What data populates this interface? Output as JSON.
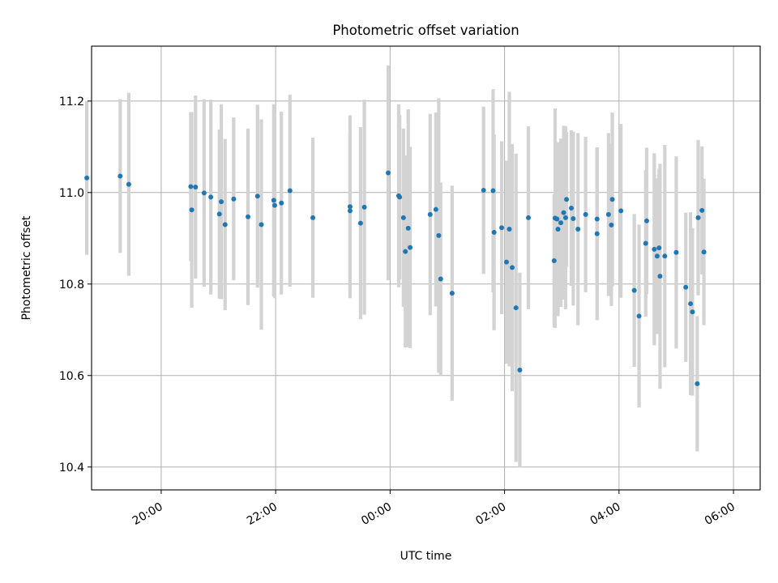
{
  "chart_data": {
    "type": "scatter",
    "title": "Photometric offset variation",
    "xlabel": "UTC time",
    "ylabel": "Photometric offset",
    "xlim": [
      "18:47",
      "06:28"
    ],
    "ylim": [
      10.35,
      11.32
    ],
    "x_ticks": [
      "20:00",
      "22:00",
      "00:00",
      "02:00",
      "04:00",
      "06:00"
    ],
    "y_ticks": [
      "10.4",
      "10.6",
      "10.8",
      "11.0",
      "11.2"
    ],
    "grid": true,
    "colors": {
      "points": "#1f77b4",
      "errorbars": "#d3d3d3",
      "grid": "#b0b0b0",
      "axes": "#000000"
    },
    "series": [
      {
        "x": [
          "18:42",
          "19:17",
          "19:26",
          "20:31",
          "20:32",
          "20:36",
          "20:45",
          "20:52",
          "21:01",
          "21:03",
          "21:07",
          "21:16",
          "21:31",
          "21:41",
          "21:45",
          "21:58",
          "21:59",
          "22:06",
          "22:15",
          "22:39",
          "23:18",
          "23:18",
          "23:29",
          "23:33",
          "23:58",
          "00:09",
          "00:10",
          "00:14",
          "00:16",
          "00:19",
          "00:21",
          "00:42",
          "00:48",
          "00:51",
          "00:53",
          "01:05",
          "01:38",
          "01:48",
          "01:49",
          "01:57",
          "02:02",
          "02:05",
          "02:08",
          "02:12",
          "02:16",
          "02:25",
          "02:52",
          "02:53",
          "02:55",
          "02:56",
          "02:59",
          "03:02",
          "03:04",
          "03:05",
          "03:10",
          "03:12",
          "03:17",
          "03:25",
          "03:37",
          "03:37",
          "03:49",
          "03:52",
          "03:53",
          "04:02",
          "04:16",
          "04:21",
          "04:28",
          "04:29",
          "04:37",
          "04:40",
          "04:42",
          "04:43",
          "04:48",
          "05:00",
          "05:10",
          "05:15",
          "05:17",
          "05:22",
          "05:23",
          "05:27",
          "05:29"
        ],
        "y": [
          11.032,
          11.036,
          11.018,
          11.013,
          10.962,
          11.012,
          10.999,
          10.99,
          10.953,
          10.98,
          10.93,
          10.986,
          10.947,
          10.992,
          10.93,
          10.983,
          10.972,
          10.977,
          11.004,
          10.945,
          10.96,
          10.969,
          10.933,
          10.968,
          11.043,
          10.993,
          10.99,
          10.945,
          10.871,
          10.922,
          10.88,
          10.952,
          10.963,
          10.906,
          10.811,
          10.78,
          11.005,
          11.004,
          10.913,
          10.923,
          10.848,
          10.92,
          10.836,
          10.748,
          10.612,
          10.945,
          10.851,
          10.944,
          10.942,
          10.92,
          10.934,
          10.956,
          10.945,
          10.985,
          10.966,
          10.943,
          10.92,
          10.952,
          10.91,
          10.942,
          10.952,
          10.929,
          10.985,
          10.96,
          10.786,
          10.73,
          10.889,
          10.938,
          10.876,
          10.861,
          10.879,
          10.817,
          10.861,
          10.869,
          10.793,
          10.757,
          10.739,
          10.582,
          10.945,
          10.961,
          10.87
        ],
        "yerr": [
          0.168,
          0.168,
          0.2,
          0.163,
          0.214,
          0.2,
          0.205,
          0.213,
          0.185,
          0.213,
          0.187,
          0.178,
          0.193,
          0.2,
          0.23,
          0.21,
          0.203,
          0.2,
          0.21,
          0.175,
          0.172,
          0.2,
          0.21,
          0.235,
          0.235,
          0.2,
          0.18,
          0.195,
          0.21,
          0.26,
          0.22,
          0.22,
          0.212,
          0.3,
          0.211,
          0.235,
          0.183,
          0.222,
          0.214,
          0.189,
          0.222,
          0.3,
          0.27,
          0.337,
          0.213,
          0.2,
          0.145,
          0.24,
          0.15,
          0.19,
          0.184,
          0.19,
          0.2,
          0.147,
          0.17,
          0.19,
          0.21,
          0.17,
          0.189,
          0.156,
          0.178,
          0.177,
          0.19,
          0.19,
          0.167,
          0.2,
          0.16,
          0.16,
          0.21,
          0.17,
          0.173,
          0.246,
          0.243,
          0.21,
          0.163,
          0.2,
          0.183,
          0.148,
          0.17,
          0.14,
          0.16
        ]
      }
    ]
  }
}
